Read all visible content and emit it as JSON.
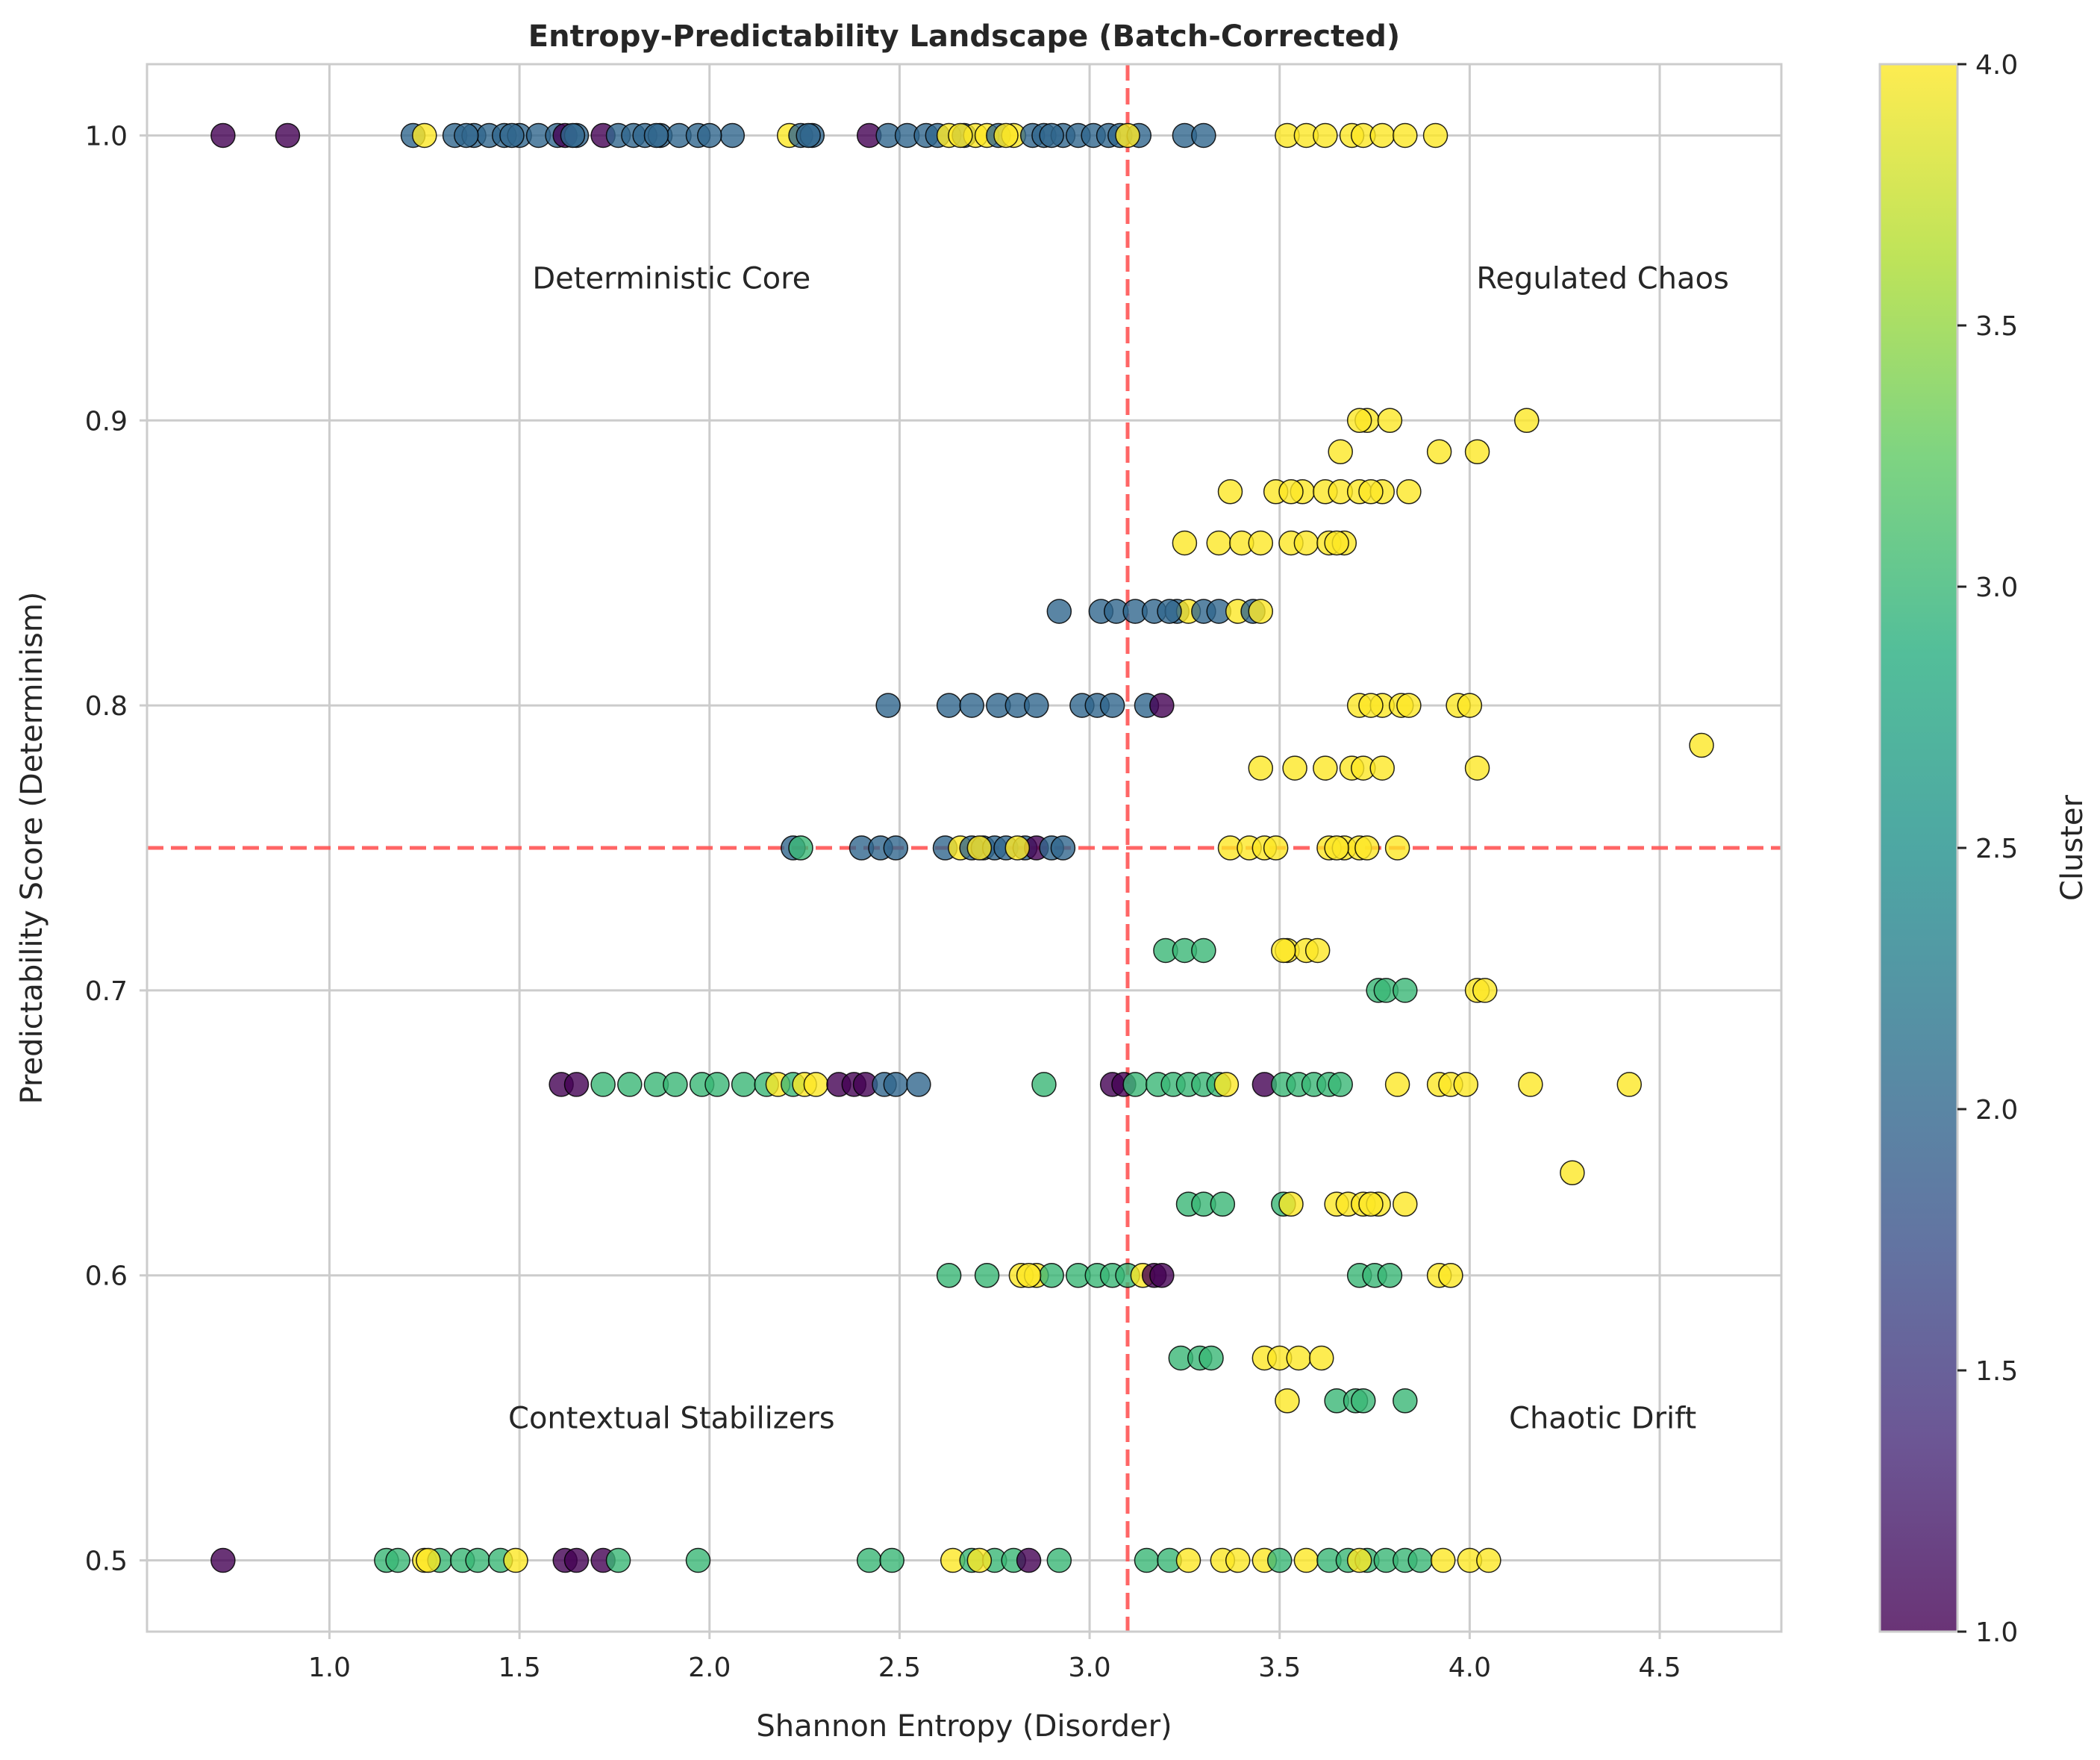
{
  "chart_data": {
    "type": "scatter",
    "title": "Entropy-Predictability Landscape (Batch-Corrected)",
    "xlabel": "Shannon Entropy (Disorder)",
    "ylabel": "Predictability Score (Determinism)",
    "xlim": [
      0.52,
      4.82
    ],
    "ylim": [
      0.475,
      1.025
    ],
    "xticks": [
      1.0,
      1.5,
      2.0,
      2.5,
      3.0,
      3.5,
      4.0,
      4.5
    ],
    "xtick_labels": [
      "1.0",
      "1.5",
      "2.0",
      "2.5",
      "3.0",
      "3.5",
      "4.0",
      "4.5"
    ],
    "yticks": [
      0.5,
      0.6,
      0.7,
      0.8,
      0.9,
      1.0
    ],
    "ytick_labels": [
      "0.5",
      "0.6",
      "0.7",
      "0.8",
      "0.9",
      "1.0"
    ],
    "grid": true,
    "colormap": "viridis",
    "point_alpha": 0.8,
    "reference_lines": [
      {
        "orientation": "vertical",
        "value": 3.1,
        "color": "#ff5555",
        "style": "dashed"
      },
      {
        "orientation": "horizontal",
        "value": 0.75,
        "color": "#ff5555",
        "style": "dashed"
      }
    ],
    "annotations": [
      {
        "text": "Deterministic Core",
        "x": 1.9,
        "y": 0.95
      },
      {
        "text": "Regulated Chaos",
        "x": 4.35,
        "y": 0.95
      },
      {
        "text": "Contextual Stabilizers",
        "x": 1.9,
        "y": 0.55
      },
      {
        "text": "Chaotic Drift",
        "x": 4.35,
        "y": 0.55
      }
    ],
    "colorbar": {
      "label": "Cluster",
      "range": [
        1.0,
        4.0
      ],
      "ticks": [
        1.0,
        1.5,
        2.0,
        2.5,
        3.0,
        3.5,
        4.0
      ],
      "tick_labels": [
        "1.0",
        "1.5",
        "2.0",
        "2.5",
        "3.0",
        "3.5",
        "4.0"
      ]
    },
    "points": [
      [
        0.72,
        1.0,
        1
      ],
      [
        0.89,
        1.0,
        1
      ],
      [
        1.22,
        1.0,
        2
      ],
      [
        1.33,
        1.0,
        2
      ],
      [
        1.38,
        1.0,
        2
      ],
      [
        1.42,
        1.0,
        2
      ],
      [
        1.46,
        1.0,
        2
      ],
      [
        1.5,
        1.0,
        2
      ],
      [
        1.55,
        1.0,
        2
      ],
      [
        1.6,
        1.0,
        2
      ],
      [
        1.62,
        1.0,
        1
      ],
      [
        1.65,
        1.0,
        2
      ],
      [
        1.72,
        1.0,
        1
      ],
      [
        1.76,
        1.0,
        2
      ],
      [
        1.8,
        1.0,
        2
      ],
      [
        1.83,
        1.0,
        2
      ],
      [
        1.87,
        1.0,
        2
      ],
      [
        1.92,
        1.0,
        2
      ],
      [
        1.97,
        1.0,
        2
      ],
      [
        2.06,
        1.0,
        2
      ],
      [
        2.21,
        1.0,
        4
      ],
      [
        2.24,
        1.0,
        2
      ],
      [
        2.27,
        1.0,
        2
      ],
      [
        2.42,
        1.0,
        1
      ],
      [
        2.47,
        1.0,
        2
      ],
      [
        2.52,
        1.0,
        2
      ],
      [
        2.57,
        1.0,
        2
      ],
      [
        2.6,
        1.0,
        2
      ],
      [
        2.63,
        1.0,
        4
      ],
      [
        2.67,
        1.0,
        2
      ],
      [
        2.7,
        1.0,
        4
      ],
      [
        2.73,
        1.0,
        4
      ],
      [
        2.76,
        1.0,
        2
      ],
      [
        2.8,
        1.0,
        4
      ],
      [
        2.85,
        1.0,
        2
      ],
      [
        2.88,
        1.0,
        2
      ],
      [
        2.93,
        1.0,
        2
      ],
      [
        2.97,
        1.0,
        2
      ],
      [
        3.01,
        1.0,
        2
      ],
      [
        3.05,
        1.0,
        2
      ],
      [
        3.08,
        1.0,
        2
      ],
      [
        3.13,
        1.0,
        2
      ],
      [
        3.25,
        1.0,
        2
      ],
      [
        3.3,
        1.0,
        2
      ],
      [
        3.52,
        1.0,
        4
      ],
      [
        3.57,
        1.0,
        4
      ],
      [
        3.62,
        1.0,
        4
      ],
      [
        3.69,
        1.0,
        4
      ],
      [
        3.72,
        1.0,
        4
      ],
      [
        3.77,
        1.0,
        4
      ],
      [
        3.83,
        1.0,
        4
      ],
      [
        3.91,
        1.0,
        4
      ],
      [
        1.25,
        1.0,
        4
      ],
      [
        1.36,
        1.0,
        2
      ],
      [
        1.48,
        1.0,
        2
      ],
      [
        1.64,
        1.0,
        2
      ],
      [
        1.86,
        1.0,
        2
      ],
      [
        2.0,
        1.0,
        2
      ],
      [
        2.26,
        1.0,
        2
      ],
      [
        2.66,
        1.0,
        4
      ],
      [
        2.78,
        1.0,
        4
      ],
      [
        2.9,
        1.0,
        2
      ],
      [
        3.1,
        1.0,
        4
      ],
      [
        3.73,
        0.9,
        4
      ],
      [
        3.79,
        0.9,
        4
      ],
      [
        4.15,
        0.9,
        4
      ],
      [
        3.71,
        0.9,
        4
      ],
      [
        3.66,
        0.889,
        4
      ],
      [
        3.92,
        0.889,
        4
      ],
      [
        4.02,
        0.889,
        4
      ],
      [
        3.37,
        0.875,
        4
      ],
      [
        3.49,
        0.875,
        4
      ],
      [
        3.56,
        0.875,
        4
      ],
      [
        3.62,
        0.875,
        4
      ],
      [
        3.66,
        0.875,
        4
      ],
      [
        3.71,
        0.875,
        4
      ],
      [
        3.77,
        0.875,
        4
      ],
      [
        3.84,
        0.875,
        4
      ],
      [
        3.53,
        0.875,
        4
      ],
      [
        3.74,
        0.875,
        4
      ],
      [
        3.25,
        0.857,
        4
      ],
      [
        3.34,
        0.857,
        4
      ],
      [
        3.4,
        0.857,
        4
      ],
      [
        3.45,
        0.857,
        4
      ],
      [
        3.53,
        0.857,
        4
      ],
      [
        3.57,
        0.857,
        4
      ],
      [
        3.63,
        0.857,
        4
      ],
      [
        3.67,
        0.857,
        4
      ],
      [
        3.65,
        0.857,
        4
      ],
      [
        2.92,
        0.833,
        2
      ],
      [
        3.03,
        0.833,
        2
      ],
      [
        3.07,
        0.833,
        2
      ],
      [
        3.12,
        0.833,
        2
      ],
      [
        3.17,
        0.833,
        2
      ],
      [
        3.23,
        0.833,
        2
      ],
      [
        3.26,
        0.833,
        4
      ],
      [
        3.3,
        0.833,
        2
      ],
      [
        3.34,
        0.833,
        2
      ],
      [
        3.39,
        0.833,
        4
      ],
      [
        3.43,
        0.833,
        2
      ],
      [
        3.45,
        0.833,
        4
      ],
      [
        3.21,
        0.833,
        2
      ],
      [
        2.47,
        0.8,
        2
      ],
      [
        2.63,
        0.8,
        2
      ],
      [
        2.69,
        0.8,
        2
      ],
      [
        2.76,
        0.8,
        2
      ],
      [
        2.81,
        0.8,
        2
      ],
      [
        2.86,
        0.8,
        2
      ],
      [
        2.98,
        0.8,
        2
      ],
      [
        3.02,
        0.8,
        2
      ],
      [
        3.06,
        0.8,
        2
      ],
      [
        3.15,
        0.8,
        2
      ],
      [
        3.19,
        0.8,
        1
      ],
      [
        3.71,
        0.8,
        4
      ],
      [
        3.77,
        0.8,
        4
      ],
      [
        3.82,
        0.8,
        4
      ],
      [
        3.84,
        0.8,
        4
      ],
      [
        3.97,
        0.8,
        4
      ],
      [
        4.0,
        0.8,
        4
      ],
      [
        3.74,
        0.8,
        4
      ],
      [
        4.61,
        0.786,
        4
      ],
      [
        3.45,
        0.778,
        4
      ],
      [
        3.54,
        0.778,
        4
      ],
      [
        3.62,
        0.778,
        4
      ],
      [
        3.69,
        0.778,
        4
      ],
      [
        3.72,
        0.778,
        4
      ],
      [
        3.77,
        0.778,
        4
      ],
      [
        4.02,
        0.778,
        4
      ],
      [
        2.22,
        0.75,
        2
      ],
      [
        2.24,
        0.75,
        3
      ],
      [
        2.4,
        0.75,
        2
      ],
      [
        2.45,
        0.75,
        2
      ],
      [
        2.49,
        0.75,
        2
      ],
      [
        2.62,
        0.75,
        2
      ],
      [
        2.66,
        0.75,
        4
      ],
      [
        2.69,
        0.75,
        2
      ],
      [
        2.72,
        0.75,
        2
      ],
      [
        2.75,
        0.75,
        2
      ],
      [
        2.78,
        0.75,
        2
      ],
      [
        2.83,
        0.75,
        2
      ],
      [
        2.86,
        0.75,
        1
      ],
      [
        2.9,
        0.75,
        2
      ],
      [
        2.93,
        0.75,
        2
      ],
      [
        2.71,
        0.75,
        4
      ],
      [
        2.81,
        0.75,
        4
      ],
      [
        3.37,
        0.75,
        4
      ],
      [
        3.42,
        0.75,
        4
      ],
      [
        3.46,
        0.75,
        4
      ],
      [
        3.49,
        0.75,
        4
      ],
      [
        3.63,
        0.75,
        4
      ],
      [
        3.67,
        0.75,
        4
      ],
      [
        3.71,
        0.75,
        4
      ],
      [
        3.73,
        0.75,
        4
      ],
      [
        3.81,
        0.75,
        4
      ],
      [
        3.65,
        0.75,
        4
      ],
      [
        3.2,
        0.714,
        3
      ],
      [
        3.25,
        0.714,
        3
      ],
      [
        3.3,
        0.714,
        3
      ],
      [
        3.52,
        0.714,
        4
      ],
      [
        3.57,
        0.714,
        4
      ],
      [
        3.6,
        0.714,
        4
      ],
      [
        3.51,
        0.714,
        4
      ],
      [
        3.76,
        0.7,
        3
      ],
      [
        3.78,
        0.7,
        3
      ],
      [
        3.83,
        0.7,
        3
      ],
      [
        4.02,
        0.7,
        4
      ],
      [
        4.04,
        0.7,
        4
      ],
      [
        1.61,
        0.667,
        1
      ],
      [
        1.65,
        0.667,
        1
      ],
      [
        1.72,
        0.667,
        3
      ],
      [
        1.79,
        0.667,
        3
      ],
      [
        1.86,
        0.667,
        3
      ],
      [
        1.91,
        0.667,
        3
      ],
      [
        1.98,
        0.667,
        3
      ],
      [
        2.02,
        0.667,
        3
      ],
      [
        2.09,
        0.667,
        3
      ],
      [
        2.15,
        0.667,
        3
      ],
      [
        2.18,
        0.667,
        4
      ],
      [
        2.22,
        0.667,
        3
      ],
      [
        2.25,
        0.667,
        4
      ],
      [
        2.28,
        0.667,
        4
      ],
      [
        2.34,
        0.667,
        1
      ],
      [
        2.38,
        0.667,
        1
      ],
      [
        2.41,
        0.667,
        1
      ],
      [
        2.46,
        0.667,
        2
      ],
      [
        2.49,
        0.667,
        2
      ],
      [
        2.55,
        0.667,
        2
      ],
      [
        2.88,
        0.667,
        3
      ],
      [
        3.06,
        0.667,
        1
      ],
      [
        3.09,
        0.667,
        1
      ],
      [
        3.12,
        0.667,
        3
      ],
      [
        3.18,
        0.667,
        3
      ],
      [
        3.22,
        0.667,
        3
      ],
      [
        3.26,
        0.667,
        3
      ],
      [
        3.3,
        0.667,
        3
      ],
      [
        3.34,
        0.667,
        3
      ],
      [
        3.36,
        0.667,
        4
      ],
      [
        3.46,
        0.667,
        1
      ],
      [
        3.51,
        0.667,
        3
      ],
      [
        3.55,
        0.667,
        3
      ],
      [
        3.59,
        0.667,
        3
      ],
      [
        3.63,
        0.667,
        3
      ],
      [
        3.66,
        0.667,
        3
      ],
      [
        3.81,
        0.667,
        4
      ],
      [
        3.92,
        0.667,
        4
      ],
      [
        3.95,
        0.667,
        4
      ],
      [
        3.99,
        0.667,
        4
      ],
      [
        4.16,
        0.667,
        4
      ],
      [
        4.42,
        0.667,
        4
      ],
      [
        4.27,
        0.636,
        4
      ],
      [
        3.26,
        0.625,
        3
      ],
      [
        3.3,
        0.625,
        3
      ],
      [
        3.35,
        0.625,
        3
      ],
      [
        3.51,
        0.625,
        3
      ],
      [
        3.53,
        0.625,
        4
      ],
      [
        3.65,
        0.625,
        4
      ],
      [
        3.68,
        0.625,
        4
      ],
      [
        3.72,
        0.625,
        4
      ],
      [
        3.76,
        0.625,
        4
      ],
      [
        3.83,
        0.625,
        4
      ],
      [
        3.74,
        0.625,
        4
      ],
      [
        2.63,
        0.6,
        3
      ],
      [
        2.73,
        0.6,
        3
      ],
      [
        2.82,
        0.6,
        4
      ],
      [
        2.86,
        0.6,
        4
      ],
      [
        2.9,
        0.6,
        3
      ],
      [
        2.97,
        0.6,
        3
      ],
      [
        3.02,
        0.6,
        3
      ],
      [
        3.06,
        0.6,
        3
      ],
      [
        3.1,
        0.6,
        3
      ],
      [
        3.14,
        0.6,
        4
      ],
      [
        3.17,
        0.6,
        1
      ],
      [
        3.19,
        0.6,
        1
      ],
      [
        3.71,
        0.6,
        3
      ],
      [
        3.75,
        0.6,
        3
      ],
      [
        3.79,
        0.6,
        3
      ],
      [
        3.92,
        0.6,
        4
      ],
      [
        3.95,
        0.6,
        4
      ],
      [
        2.84,
        0.6,
        4
      ],
      [
        3.24,
        0.571,
        3
      ],
      [
        3.29,
        0.571,
        3
      ],
      [
        3.32,
        0.571,
        3
      ],
      [
        3.46,
        0.571,
        4
      ],
      [
        3.5,
        0.571,
        4
      ],
      [
        3.55,
        0.571,
        4
      ],
      [
        3.61,
        0.571,
        4
      ],
      [
        3.52,
        0.556,
        4
      ],
      [
        3.65,
        0.556,
        3
      ],
      [
        3.7,
        0.556,
        3
      ],
      [
        3.72,
        0.556,
        3
      ],
      [
        3.83,
        0.556,
        3
      ],
      [
        0.72,
        0.5,
        1
      ],
      [
        1.15,
        0.5,
        3
      ],
      [
        1.18,
        0.5,
        3
      ],
      [
        1.25,
        0.5,
        4
      ],
      [
        1.29,
        0.5,
        3
      ],
      [
        1.35,
        0.5,
        3
      ],
      [
        1.39,
        0.5,
        3
      ],
      [
        1.45,
        0.5,
        3
      ],
      [
        1.49,
        0.5,
        4
      ],
      [
        1.62,
        0.5,
        1
      ],
      [
        1.65,
        0.5,
        1
      ],
      [
        1.72,
        0.5,
        1
      ],
      [
        1.76,
        0.5,
        3
      ],
      [
        1.97,
        0.5,
        3
      ],
      [
        2.42,
        0.5,
        3
      ],
      [
        2.48,
        0.5,
        3
      ],
      [
        2.64,
        0.5,
        4
      ],
      [
        2.69,
        0.5,
        3
      ],
      [
        2.75,
        0.5,
        3
      ],
      [
        2.8,
        0.5,
        3
      ],
      [
        2.84,
        0.5,
        1
      ],
      [
        2.92,
        0.5,
        3
      ],
      [
        3.15,
        0.5,
        3
      ],
      [
        3.21,
        0.5,
        3
      ],
      [
        3.26,
        0.5,
        4
      ],
      [
        3.35,
        0.5,
        4
      ],
      [
        3.39,
        0.5,
        4
      ],
      [
        3.46,
        0.5,
        4
      ],
      [
        3.5,
        0.5,
        3
      ],
      [
        3.57,
        0.5,
        4
      ],
      [
        3.63,
        0.5,
        3
      ],
      [
        3.68,
        0.5,
        3
      ],
      [
        3.73,
        0.5,
        3
      ],
      [
        3.78,
        0.5,
        3
      ],
      [
        3.83,
        0.5,
        3
      ],
      [
        3.87,
        0.5,
        3
      ],
      [
        3.93,
        0.5,
        4
      ],
      [
        4.0,
        0.5,
        4
      ],
      [
        4.05,
        0.5,
        4
      ],
      [
        1.26,
        0.5,
        4
      ],
      [
        2.71,
        0.5,
        4
      ],
      [
        3.71,
        0.5,
        4
      ]
    ]
  }
}
